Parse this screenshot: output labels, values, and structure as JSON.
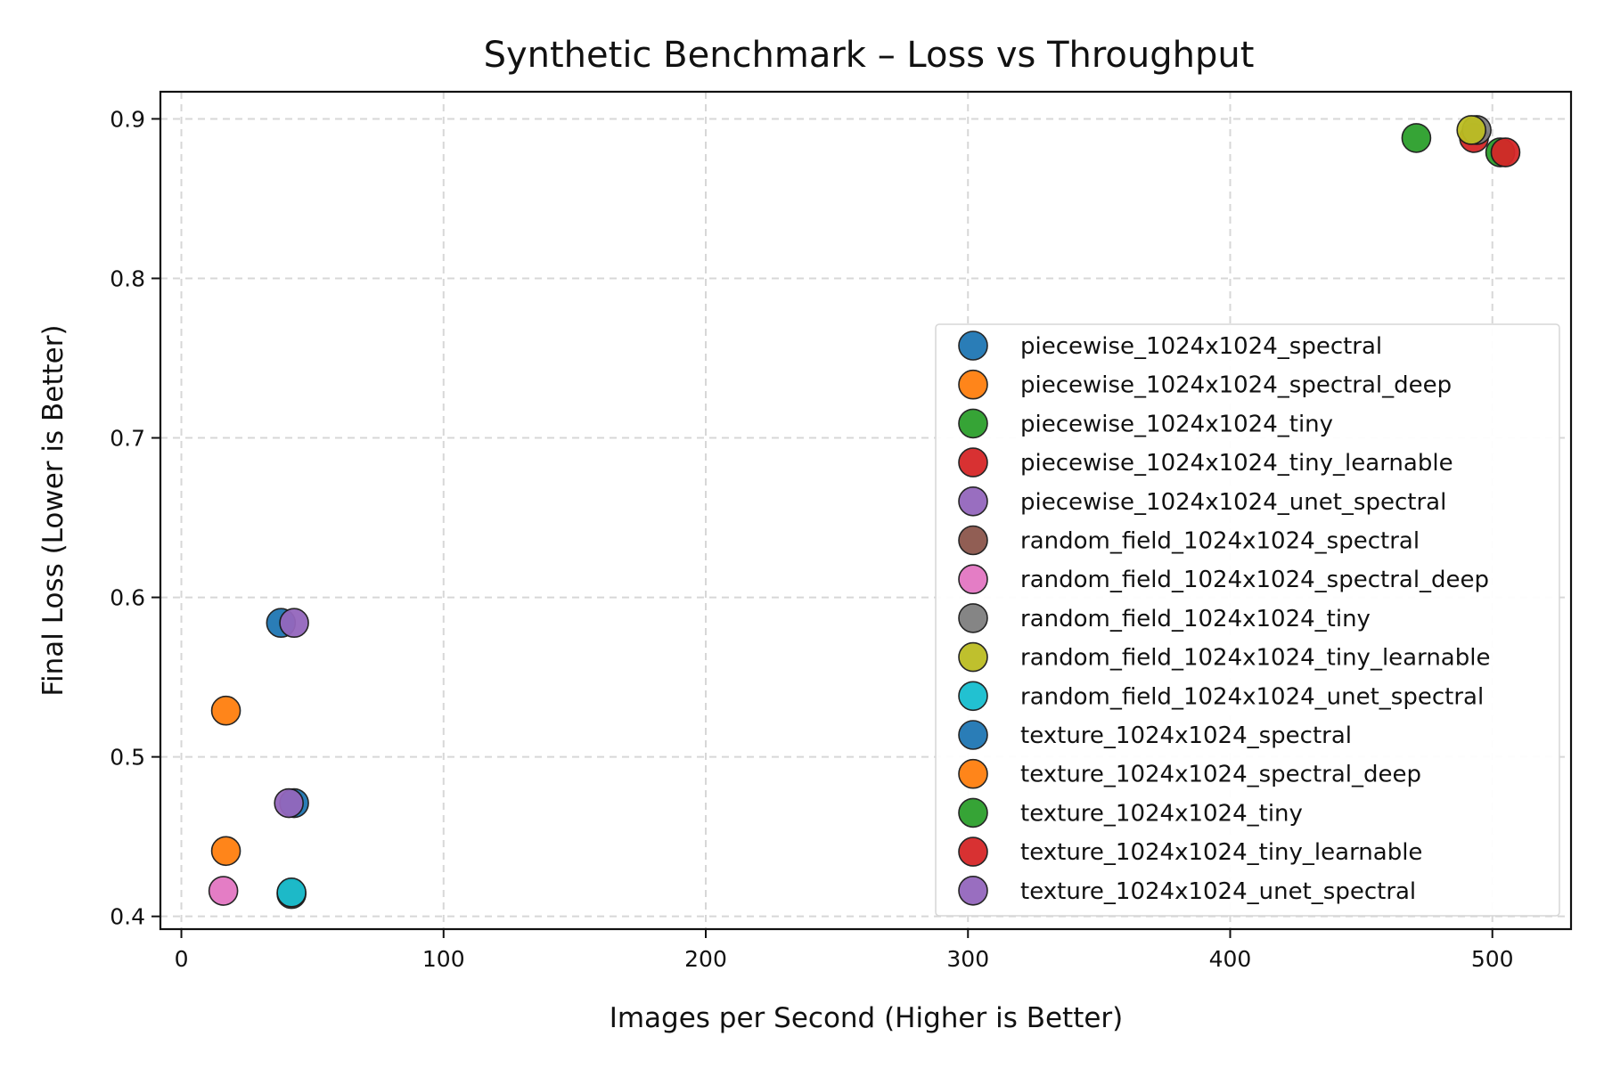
{
  "chart_data": {
    "type": "scatter",
    "title": "Synthetic Benchmark – Loss vs Throughput",
    "xlabel": "Images per Second (Higher is Better)",
    "ylabel": "Final Loss (Lower is Better)",
    "xlim": [
      -8,
      530
    ],
    "ylim": [
      0.392,
      0.917
    ],
    "xticks": [
      0,
      100,
      200,
      300,
      400,
      500
    ],
    "yticks": [
      0.4,
      0.5,
      0.6,
      0.7,
      0.8,
      0.9
    ],
    "grid": true,
    "legend_position": "right",
    "series": [
      {
        "name": "piecewise_1024x1024_spectral",
        "color": "#1f77b4",
        "points": [
          [
            38,
            0.584
          ]
        ]
      },
      {
        "name": "piecewise_1024x1024_spectral_deep",
        "color": "#ff7f0e",
        "points": [
          [
            17,
            0.529
          ]
        ]
      },
      {
        "name": "piecewise_1024x1024_tiny",
        "color": "#2ca02c",
        "points": [
          [
            471,
            0.888
          ]
        ]
      },
      {
        "name": "piecewise_1024x1024_tiny_learnable",
        "color": "#d62728",
        "points": [
          [
            493,
            0.888
          ]
        ]
      },
      {
        "name": "piecewise_1024x1024_unet_spectral",
        "color": "#9467bd",
        "points": [
          [
            43,
            0.584
          ]
        ]
      },
      {
        "name": "random_field_1024x1024_spectral",
        "color": "#8c564b",
        "points": [
          [
            42,
            0.414
          ]
        ]
      },
      {
        "name": "random_field_1024x1024_spectral_deep",
        "color": "#e377c2",
        "points": [
          [
            16,
            0.416
          ]
        ]
      },
      {
        "name": "random_field_1024x1024_tiny",
        "color": "#7f7f7f",
        "points": [
          [
            494,
            0.893
          ]
        ]
      },
      {
        "name": "random_field_1024x1024_tiny_learnable",
        "color": "#bcbd22",
        "points": [
          [
            492,
            0.893
          ]
        ]
      },
      {
        "name": "random_field_1024x1024_unet_spectral",
        "color": "#17becf",
        "points": [
          [
            42,
            0.415
          ]
        ]
      },
      {
        "name": "texture_1024x1024_spectral",
        "color": "#1f77b4",
        "points": [
          [
            43,
            0.471
          ]
        ]
      },
      {
        "name": "texture_1024x1024_spectral_deep",
        "color": "#ff7f0e",
        "points": [
          [
            17,
            0.441
          ]
        ]
      },
      {
        "name": "texture_1024x1024_tiny",
        "color": "#2ca02c",
        "points": [
          [
            503,
            0.879
          ]
        ]
      },
      {
        "name": "texture_1024x1024_tiny_learnable",
        "color": "#d62728",
        "points": [
          [
            505,
            0.879
          ]
        ]
      },
      {
        "name": "texture_1024x1024_unet_spectral",
        "color": "#9467bd",
        "points": [
          [
            41,
            0.471
          ]
        ]
      }
    ]
  }
}
